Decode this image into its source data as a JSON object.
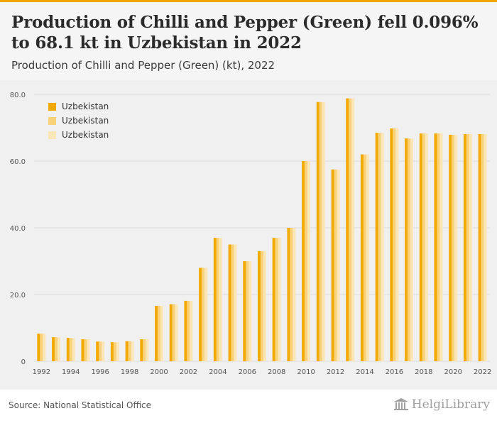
{
  "header": {
    "title": "Production of Chilli and Pepper (Green) fell 0.096% to 68.1 kt in Uzbekistan in 2022",
    "subtitle": "Production of Chilli and Pepper (Green) (kt), 2022"
  },
  "footer": {
    "source": "Source: National Statistical Office",
    "logo": "HelgiLibrary"
  },
  "colors": {
    "series1": "#f2a900",
    "series2": "#f9d27a",
    "series3": "#fbe6b7",
    "grid": "#dcdcdc",
    "axis_text": "#555555"
  },
  "chart_data": {
    "type": "bar",
    "title": "",
    "xlabel": "",
    "ylabel": "",
    "ylim": [
      0,
      80
    ],
    "yticks": [
      "0",
      "20.0",
      "40.0",
      "60.0",
      "80.0"
    ],
    "xtick_labels": [
      "1992",
      "1994",
      "1996",
      "1998",
      "2000",
      "2002",
      "2004",
      "2006",
      "2008",
      "2010",
      "2012",
      "2014",
      "2016",
      "2018",
      "2020",
      "2022"
    ],
    "grid": true,
    "legend_position": "top-left",
    "categories": [
      "1992",
      "1993",
      "1994",
      "1995",
      "1996",
      "1997",
      "1998",
      "1999",
      "2000",
      "2001",
      "2002",
      "2003",
      "2004",
      "2005",
      "2006",
      "2007",
      "2008",
      "2009",
      "2010",
      "2011",
      "2012",
      "2013",
      "2014",
      "2015",
      "2016",
      "2017",
      "2018",
      "2019",
      "2020",
      "2021",
      "2022"
    ],
    "series": [
      {
        "name": "Uzbekistan",
        "values": [
          8.3,
          7.2,
          7.0,
          6.6,
          5.9,
          5.7,
          6.0,
          6.6,
          16.6,
          17.1,
          18.1,
          28.0,
          37.0,
          35.0,
          30.0,
          33.0,
          37.0,
          40.0,
          60.0,
          77.7,
          57.5,
          78.8,
          62.0,
          68.5,
          69.8,
          66.8,
          68.3,
          68.3,
          67.9,
          68.1,
          68.1
        ]
      },
      {
        "name": "Uzbekistan",
        "values": [
          8.3,
          7.2,
          7.0,
          6.6,
          5.9,
          5.7,
          6.0,
          6.6,
          16.6,
          17.1,
          18.1,
          28.0,
          37.0,
          35.0,
          30.0,
          33.0,
          37.0,
          40.0,
          60.0,
          77.7,
          57.5,
          78.8,
          62.0,
          68.5,
          69.8,
          66.8,
          68.3,
          68.3,
          67.9,
          68.1,
          68.1
        ]
      },
      {
        "name": "Uzbekistan",
        "values": [
          8.3,
          7.2,
          7.0,
          6.6,
          5.9,
          5.7,
          6.0,
          6.6,
          16.6,
          17.1,
          18.1,
          28.0,
          37.0,
          35.0,
          30.0,
          33.0,
          37.0,
          40.0,
          60.0,
          77.7,
          57.5,
          78.8,
          62.0,
          68.5,
          69.8,
          66.8,
          68.3,
          68.3,
          67.9,
          68.1,
          68.1
        ]
      }
    ]
  }
}
